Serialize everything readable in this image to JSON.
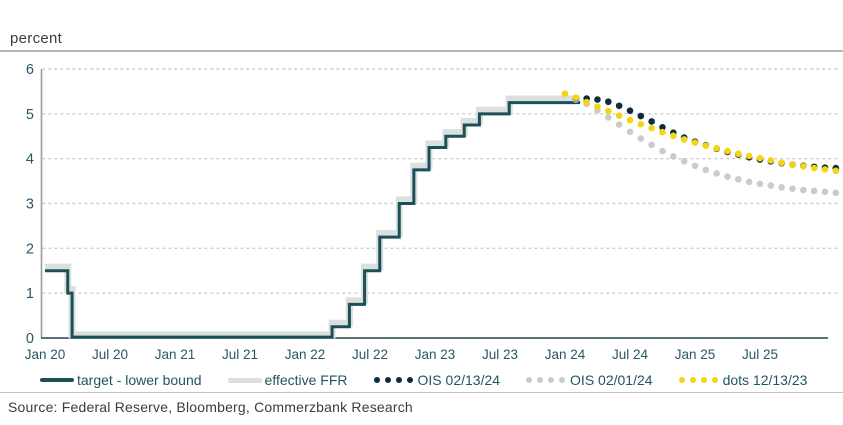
{
  "header": {
    "unit_label": "percent"
  },
  "footer": {
    "source": "Source: Federal Reserve, Bloomberg, Commerzbank Research"
  },
  "colors": {
    "teal_line": "#1b5059",
    "ffr_gray": "#dbdfde",
    "ois_navy": "#0e2b3d",
    "ois_gray": "#c8cdcc",
    "dots_yellow": "#f4d513",
    "grid": "#cccccc",
    "y_axis": "#9b9b9b",
    "x_axis": "#24424c",
    "tick_text": "#2a5763"
  },
  "legend": {
    "items": [
      {
        "label": "target - lower bound",
        "swatch": "line",
        "color": "#1b5059",
        "thickness": 4
      },
      {
        "label": "effective FFR",
        "swatch": "line",
        "color": "#dbdfde",
        "thickness": 5
      },
      {
        "label": "OIS 02/13/24",
        "swatch": "dots",
        "color": "#0e2b3d"
      },
      {
        "label": "OIS 02/01/24",
        "swatch": "dots",
        "color": "#c8cdcc"
      },
      {
        "label": "dots 12/13/23",
        "swatch": "dots",
        "color": "#f4d513"
      }
    ]
  },
  "chart_data": {
    "type": "line",
    "title": "",
    "unit_label": "percent",
    "ylabel": "percent",
    "xlabel": "",
    "ylim": [
      0,
      6
    ],
    "yticks": [
      0,
      1,
      2,
      3,
      4,
      5,
      6
    ],
    "grid": "horizontal-dotted",
    "legend_position": "bottom",
    "xticks": [
      {
        "label": "Jan 20",
        "month": 0
      },
      {
        "label": "Jul 20",
        "month": 6
      },
      {
        "label": "Jan 21",
        "month": 12
      },
      {
        "label": "Jul 21",
        "month": 18
      },
      {
        "label": "Jan 22",
        "month": 24
      },
      {
        "label": "Jul 22",
        "month": 30
      },
      {
        "label": "Jan 23",
        "month": 36
      },
      {
        "label": "Jul 23",
        "month": 42
      },
      {
        "label": "Jan 24",
        "month": 48
      },
      {
        "label": "Jul 24",
        "month": 54
      },
      {
        "label": "Jan 25",
        "month": 60
      },
      {
        "label": "Jul 25",
        "month": 66
      }
    ],
    "series": [
      {
        "name": "target - lower bound",
        "style": "step-line",
        "color": "#1b5059",
        "width": 3,
        "z": 2,
        "points": [
          [
            0,
            1.5
          ],
          [
            2.1,
            1.5
          ],
          [
            2.1,
            1.0
          ],
          [
            2.5,
            1.0
          ],
          [
            2.5,
            0.02
          ],
          [
            26.5,
            0.02
          ],
          [
            26.5,
            0.25
          ],
          [
            28.1,
            0.25
          ],
          [
            28.1,
            0.75
          ],
          [
            29.5,
            0.75
          ],
          [
            29.5,
            1.5
          ],
          [
            30.9,
            1.5
          ],
          [
            30.9,
            2.25
          ],
          [
            32.7,
            2.25
          ],
          [
            32.7,
            3.0
          ],
          [
            34.05,
            3.0
          ],
          [
            34.05,
            3.75
          ],
          [
            35.45,
            3.75
          ],
          [
            35.45,
            4.25
          ],
          [
            37.0,
            4.25
          ],
          [
            37.0,
            4.5
          ],
          [
            38.7,
            4.5
          ],
          [
            38.7,
            4.75
          ],
          [
            40.1,
            4.75
          ],
          [
            40.1,
            5.0
          ],
          [
            42.85,
            5.0
          ],
          [
            42.85,
            5.25
          ],
          [
            49.4,
            5.25
          ]
        ]
      },
      {
        "name": "effective FFR",
        "style": "step-line",
        "color": "#dbdfde",
        "width": 7,
        "z": 1,
        "points": [
          [
            0,
            1.58
          ],
          [
            2.1,
            1.58
          ],
          [
            2.1,
            1.08
          ],
          [
            2.5,
            1.08
          ],
          [
            2.5,
            0.07
          ],
          [
            26.5,
            0.07
          ],
          [
            26.5,
            0.33
          ],
          [
            28.1,
            0.33
          ],
          [
            28.1,
            0.83
          ],
          [
            29.5,
            0.83
          ],
          [
            29.5,
            1.58
          ],
          [
            30.9,
            1.58
          ],
          [
            30.9,
            2.33
          ],
          [
            32.7,
            2.33
          ],
          [
            32.7,
            3.08
          ],
          [
            34.05,
            3.08
          ],
          [
            34.05,
            3.83
          ],
          [
            35.45,
            3.83
          ],
          [
            35.45,
            4.33
          ],
          [
            37.0,
            4.33
          ],
          [
            37.0,
            4.58
          ],
          [
            38.7,
            4.58
          ],
          [
            38.7,
            4.83
          ],
          [
            40.1,
            4.83
          ],
          [
            40.1,
            5.08
          ],
          [
            42.85,
            5.08
          ],
          [
            42.85,
            5.33
          ],
          [
            49.4,
            5.33
          ]
        ]
      },
      {
        "name": "OIS 02/13/24",
        "style": "dots",
        "color": "#0e2b3d",
        "radius": 3.3,
        "z": 4,
        "start_month": 49,
        "step_months": 1,
        "values": [
          5.35,
          5.34,
          5.32,
          5.27,
          5.18,
          5.07,
          4.95,
          4.83,
          4.7,
          4.58,
          4.47,
          4.38,
          4.3,
          4.22,
          4.15,
          4.09,
          4.03,
          3.98,
          3.94,
          3.9,
          3.87,
          3.84,
          3.82,
          3.8,
          3.79
        ]
      },
      {
        "name": "OIS 02/01/24",
        "style": "dots",
        "color": "#c8cdcc",
        "radius": 3.3,
        "z": 3,
        "start_month": 49,
        "step_months": 1,
        "values": [
          5.32,
          5.22,
          5.08,
          4.92,
          4.76,
          4.6,
          4.45,
          4.31,
          4.17,
          4.05,
          3.94,
          3.84,
          3.75,
          3.67,
          3.6,
          3.54,
          3.48,
          3.44,
          3.4,
          3.36,
          3.33,
          3.3,
          3.28,
          3.26,
          3.24
        ]
      },
      {
        "name": "dots 12/13/23",
        "style": "dots",
        "color": "#f4d513",
        "radius": 3.3,
        "z": 5,
        "start_month": 48,
        "step_months": 1,
        "values": [
          5.45,
          5.36,
          5.26,
          5.16,
          5.06,
          4.96,
          4.86,
          4.77,
          4.68,
          4.59,
          4.51,
          4.43,
          4.36,
          4.29,
          4.23,
          4.17,
          4.11,
          4.06,
          4.01,
          3.96,
          3.91,
          3.87,
          3.83,
          3.79,
          3.76,
          3.73
        ]
      }
    ]
  }
}
